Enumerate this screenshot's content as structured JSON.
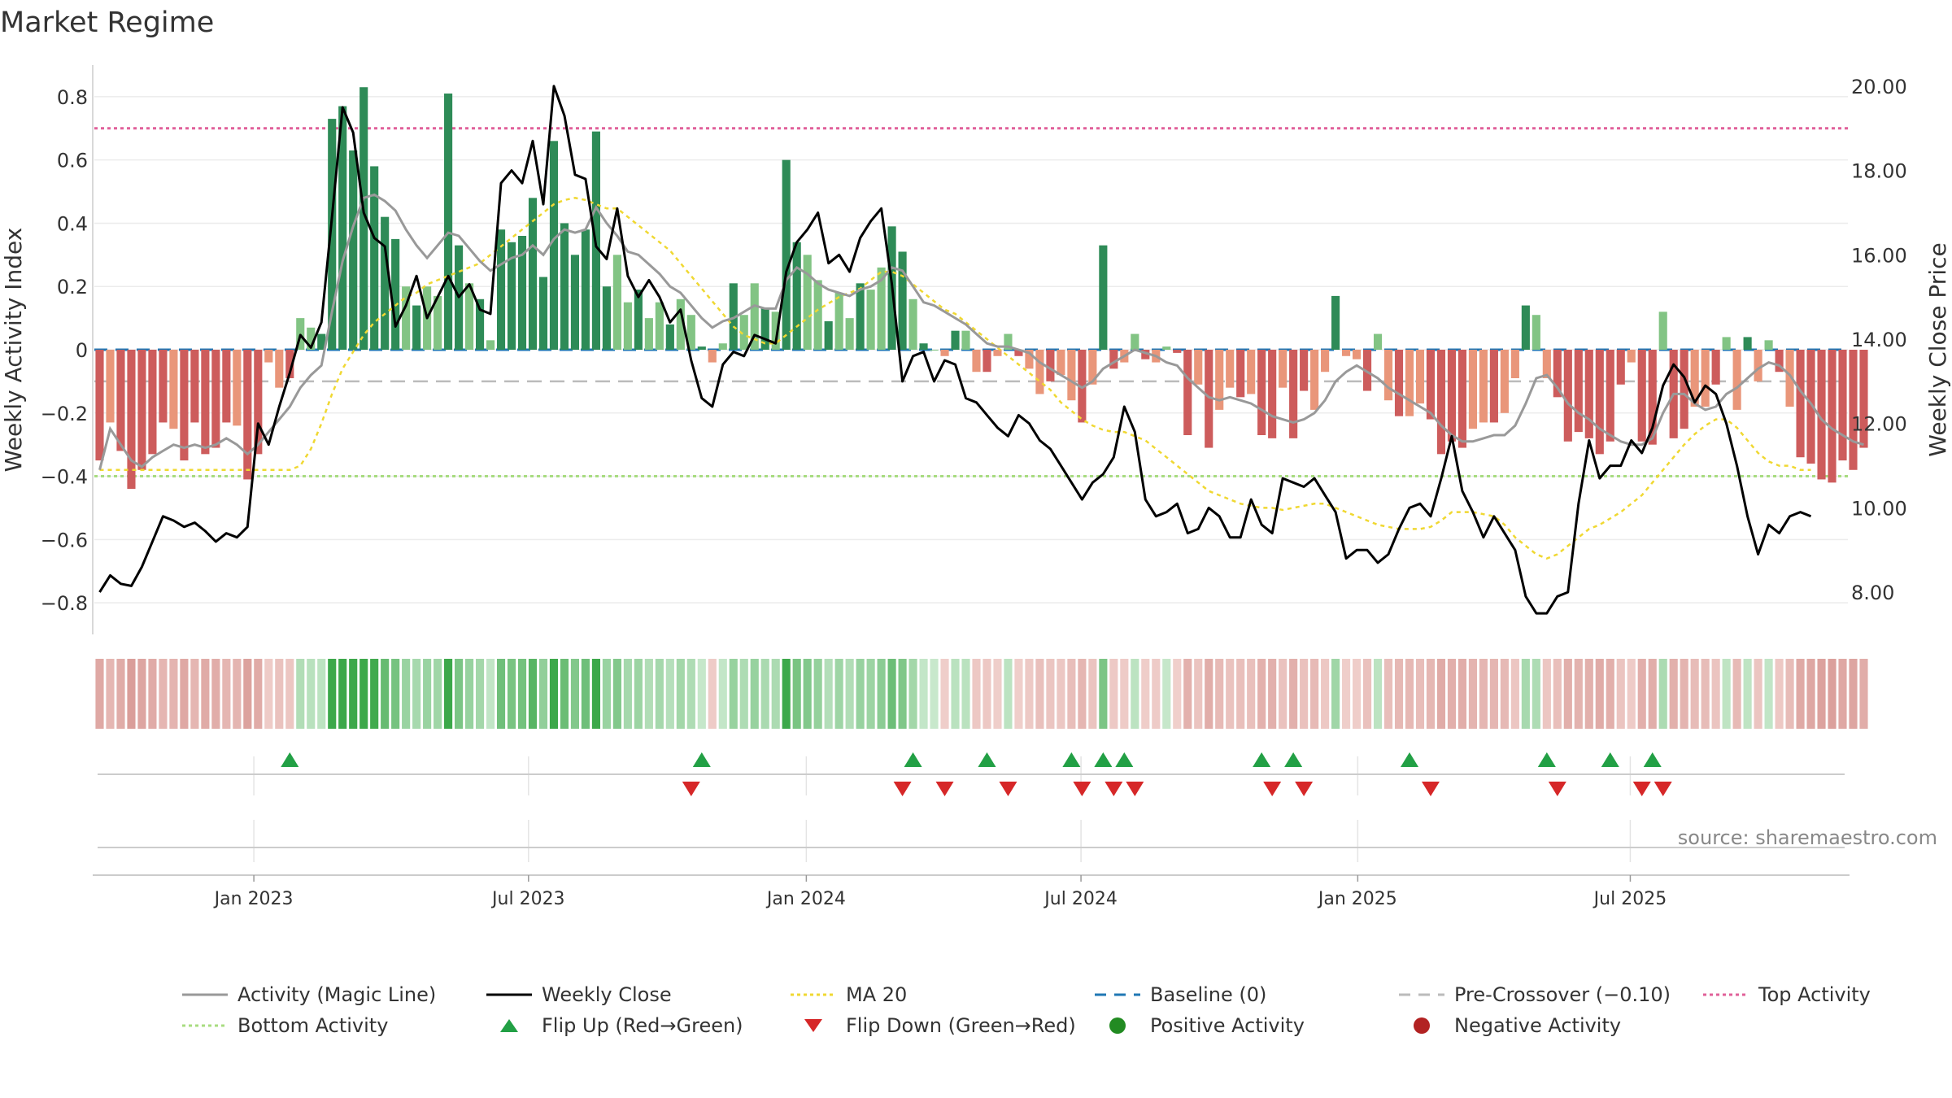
{
  "title": "Market Regime",
  "source": "source: sharemaestro.com",
  "colors": {
    "pos_dark": "#2e8b57",
    "pos_light": "#82c484",
    "neg_dark": "#cd5c5c",
    "neg_light": "#e9967a",
    "magic": "#999999",
    "close": "#000000",
    "ma20": "#f0d832",
    "baseline": "#1f77b4",
    "precross": "#bbbbbb",
    "top": "#e0609a",
    "bottom": "#a8dc80",
    "flip_up": "#22a045",
    "flip_down": "#d62728",
    "pos_dot": "#228b22",
    "neg_dot": "#b22222"
  },
  "chart_data": {
    "type": "bar",
    "ylabel": "Weekly Activity Index",
    "y2label": "Weekly Close Price",
    "ylim": [
      -0.9,
      0.9
    ],
    "y2lim": [
      7.0,
      20.5
    ],
    "yticks": [
      "0.8",
      "0.6",
      "0.4",
      "0.2",
      "0",
      "−0.2",
      "−0.4",
      "−0.6",
      "−0.8"
    ],
    "ytick_values": [
      0.8,
      0.6,
      0.4,
      0.2,
      0,
      -0.2,
      -0.4,
      -0.6,
      -0.8
    ],
    "y2ticks": [
      "20.00",
      "18.00",
      "16.00",
      "14.00",
      "12.00",
      "10.00",
      "8.00"
    ],
    "y2tick_values": [
      20,
      18,
      16,
      14,
      12,
      10,
      8
    ],
    "xticks": [
      "Jan 2023",
      "Jul 2023",
      "Jan 2024",
      "Jul 2024",
      "Jan 2025",
      "Jul 2025"
    ],
    "xtick_weeks": [
      14.6,
      40.6,
      66.9,
      92.9,
      119.1,
      144.9
    ],
    "weeks": 166,
    "top_activity": 0.7,
    "bottom_activity": -0.4,
    "pre_crossover": -0.1,
    "baseline": 0,
    "activity": [
      -0.35,
      -0.23,
      -0.32,
      -0.44,
      -0.38,
      -0.33,
      -0.23,
      -0.25,
      -0.35,
      -0.23,
      -0.33,
      -0.31,
      -0.23,
      -0.24,
      -0.41,
      -0.33,
      -0.04,
      -0.12,
      -0.09,
      0.1,
      0.07,
      0.05,
      0.73,
      0.77,
      0.63,
      0.83,
      0.58,
      0.42,
      0.35,
      0.2,
      0.14,
      0.2,
      0.17,
      0.81,
      0.33,
      0.21,
      0.16,
      0.03,
      0.38,
      0.34,
      0.36,
      0.48,
      0.23,
      0.66,
      0.4,
      0.3,
      0.38,
      0.69,
      0.2,
      0.3,
      0.15,
      0.19,
      0.1,
      0.15,
      0.08,
      0.16,
      0.11,
      0.01,
      -0.04,
      0.02,
      0.21,
      0.11,
      0.21,
      0.13,
      0.12,
      0.6,
      0.34,
      0.3,
      0.22,
      0.09,
      0.18,
      0.1,
      0.21,
      0.19,
      0.26,
      0.39,
      0.31,
      0.16,
      0.02,
      0.0,
      -0.02,
      0.06,
      0.06,
      -0.07,
      -0.07,
      -0.02,
      0.05,
      -0.02,
      -0.06,
      -0.14,
      -0.1,
      -0.08,
      -0.16,
      -0.23,
      -0.11,
      0.33,
      -0.06,
      -0.04,
      0.05,
      -0.03,
      -0.04,
      0.01,
      -0.01,
      -0.27,
      -0.11,
      -0.31,
      -0.19,
      -0.12,
      -0.15,
      -0.14,
      -0.27,
      -0.28,
      -0.12,
      -0.28,
      -0.13,
      -0.19,
      -0.07,
      0.17,
      -0.02,
      -0.03,
      -0.13,
      0.05,
      -0.16,
      -0.21,
      -0.21,
      -0.17,
      -0.22,
      -0.33,
      -0.29,
      -0.31,
      -0.25,
      -0.23,
      -0.23,
      -0.2,
      -0.09,
      0.14,
      0.11,
      -0.09,
      -0.15,
      -0.29,
      -0.26,
      -0.28,
      -0.33,
      -0.29,
      -0.11,
      -0.04,
      -0.29,
      -0.3,
      0.12,
      -0.28,
      -0.25,
      -0.18,
      -0.18,
      -0.11,
      0.04,
      -0.19,
      0.04,
      -0.1,
      0.03,
      -0.07,
      -0.18,
      -0.34,
      -0.36,
      -0.41,
      -0.42,
      -0.35,
      -0.38,
      -0.31
    ],
    "magic_line": [
      -0.38,
      -0.25,
      -0.3,
      -0.35,
      -0.37,
      -0.34,
      -0.32,
      -0.3,
      -0.31,
      -0.3,
      -0.31,
      -0.3,
      -0.28,
      -0.3,
      -0.33,
      -0.3,
      -0.26,
      -0.22,
      -0.18,
      -0.12,
      -0.08,
      -0.05,
      0.12,
      0.28,
      0.39,
      0.48,
      0.49,
      0.47,
      0.44,
      0.38,
      0.33,
      0.29,
      0.33,
      0.37,
      0.36,
      0.32,
      0.28,
      0.25,
      0.27,
      0.29,
      0.3,
      0.33,
      0.3,
      0.35,
      0.38,
      0.37,
      0.38,
      0.45,
      0.4,
      0.36,
      0.31,
      0.3,
      0.27,
      0.24,
      0.2,
      0.18,
      0.14,
      0.1,
      0.07,
      0.09,
      0.1,
      0.12,
      0.14,
      0.13,
      0.13,
      0.22,
      0.26,
      0.24,
      0.21,
      0.19,
      0.18,
      0.17,
      0.19,
      0.2,
      0.22,
      0.26,
      0.25,
      0.2,
      0.15,
      0.14,
      0.12,
      0.1,
      0.08,
      0.05,
      0.02,
      0.01,
      0.01,
      0.0,
      -0.01,
      -0.04,
      -0.06,
      -0.08,
      -0.1,
      -0.12,
      -0.1,
      -0.06,
      -0.04,
      -0.02,
      0.0,
      -0.01,
      -0.02,
      -0.04,
      -0.05,
      -0.09,
      -0.12,
      -0.15,
      -0.16,
      -0.15,
      -0.16,
      -0.17,
      -0.19,
      -0.21,
      -0.22,
      -0.23,
      -0.22,
      -0.2,
      -0.16,
      -0.1,
      -0.07,
      -0.05,
      -0.07,
      -0.09,
      -0.12,
      -0.14,
      -0.16,
      -0.18,
      -0.2,
      -0.24,
      -0.27,
      -0.29,
      -0.29,
      -0.28,
      -0.27,
      -0.27,
      -0.24,
      -0.17,
      -0.09,
      -0.08,
      -0.12,
      -0.17,
      -0.2,
      -0.22,
      -0.25,
      -0.27,
      -0.29,
      -0.3,
      -0.3,
      -0.28,
      -0.2,
      -0.14,
      -0.14,
      -0.17,
      -0.19,
      -0.18,
      -0.14,
      -0.12,
      -0.09,
      -0.06,
      -0.04,
      -0.05,
      -0.08,
      -0.13,
      -0.17,
      -0.22,
      -0.25,
      -0.27,
      -0.29,
      -0.3
    ],
    "weekly_close": [
      8.0,
      8.4,
      8.2,
      8.15,
      8.6,
      9.2,
      9.8,
      9.7,
      9.55,
      9.65,
      9.45,
      9.2,
      9.4,
      9.3,
      9.55,
      12.0,
      11.5,
      12.4,
      13.2,
      14.1,
      13.8,
      14.4,
      16.9,
      19.5,
      18.9,
      17.0,
      16.4,
      16.2,
      14.3,
      14.8,
      15.5,
      14.5,
      15.0,
      15.5,
      15.0,
      15.3,
      14.7,
      14.6,
      17.7,
      18.0,
      17.7,
      18.7,
      17.2,
      20.0,
      19.3,
      17.9,
      17.8,
      16.2,
      15.9,
      17.1,
      15.5,
      15.0,
      15.4,
      15.0,
      14.4,
      14.7,
      13.5,
      12.6,
      12.4,
      13.4,
      13.7,
      13.6,
      14.1,
      14.0,
      13.9,
      15.6,
      16.3,
      16.6,
      17.0,
      15.8,
      16.0,
      15.6,
      16.4,
      16.8,
      17.1,
      15.3,
      13.0,
      13.6,
      13.7,
      13.0,
      13.5,
      13.4,
      12.6,
      12.5,
      12.2,
      11.9,
      11.7,
      12.2,
      12.0,
      11.6,
      11.4,
      11.0,
      10.6,
      10.2,
      10.6,
      10.8,
      11.2,
      12.4,
      11.8,
      10.2,
      9.8,
      9.9,
      10.1,
      9.4,
      9.5,
      10.0,
      9.8,
      9.3,
      9.3,
      10.2,
      9.6,
      9.4,
      10.7,
      10.6,
      10.5,
      10.7,
      10.3,
      9.9,
      8.8,
      9.0,
      9.0,
      8.7,
      8.9,
      9.5,
      10.0,
      10.1,
      9.8,
      10.7,
      11.7,
      10.4,
      9.9,
      9.3,
      9.8,
      9.4,
      9.0,
      7.9,
      7.5,
      7.5,
      7.9,
      8.0,
      10.1,
      11.6,
      10.7,
      11.0,
      11.0,
      11.6,
      11.3,
      11.9,
      12.9,
      13.4,
      13.1,
      12.5,
      12.9,
      12.7,
      12.0,
      11.0,
      9.8,
      8.9,
      9.6,
      9.4,
      9.8,
      9.9,
      9.8
    ],
    "ma20": [
      10.9,
      10.9,
      10.9,
      10.9,
      10.9,
      10.9,
      10.9,
      10.9,
      10.9,
      10.9,
      10.9,
      10.9,
      10.9,
      10.9,
      10.9,
      10.9,
      10.9,
      10.9,
      10.9,
      11.0,
      11.4,
      12.0,
      12.7,
      13.3,
      13.7,
      14.1,
      14.4,
      14.6,
      14.8,
      15.0,
      15.1,
      15.3,
      15.4,
      15.5,
      15.6,
      15.7,
      15.8,
      16.0,
      16.2,
      16.4,
      16.6,
      16.8,
      17.0,
      17.2,
      17.3,
      17.35,
      17.3,
      17.2,
      17.1,
      17.1,
      16.9,
      16.7,
      16.5,
      16.3,
      16.1,
      15.8,
      15.5,
      15.2,
      14.9,
      14.6,
      14.3,
      14.1,
      14.0,
      13.9,
      13.9,
      14.1,
      14.3,
      14.5,
      14.7,
      14.85,
      15.0,
      15.1,
      15.2,
      15.4,
      15.6,
      15.6,
      15.5,
      15.3,
      15.1,
      14.9,
      14.7,
      14.6,
      14.4,
      14.2,
      14.0,
      13.8,
      13.6,
      13.4,
      13.2,
      13.0,
      12.8,
      12.5,
      12.3,
      12.1,
      11.95,
      11.85,
      11.8,
      11.8,
      11.7,
      11.6,
      11.4,
      11.2,
      11.0,
      10.8,
      10.6,
      10.4,
      10.3,
      10.2,
      10.1,
      10.05,
      10.0,
      10.0,
      9.95,
      10.0,
      10.05,
      10.1,
      10.1,
      10.0,
      9.9,
      9.8,
      9.7,
      9.6,
      9.55,
      9.5,
      9.5,
      9.5,
      9.55,
      9.7,
      9.9,
      9.9,
      9.9,
      9.85,
      9.8,
      9.6,
      9.3,
      9.1,
      8.9,
      8.8,
      8.9,
      9.1,
      9.3,
      9.5,
      9.6,
      9.75,
      9.9,
      10.1,
      10.3,
      10.6,
      10.9,
      11.2,
      11.5,
      11.75,
      11.95,
      12.1,
      12.1,
      11.9,
      11.6,
      11.3,
      11.1,
      11.0,
      11.0,
      10.9,
      10.9
    ],
    "flip_up_weeks": [
      18,
      57,
      77,
      84,
      92,
      95,
      97,
      110,
      113,
      124,
      137,
      143,
      147
    ],
    "flip_down_weeks": [
      56,
      76,
      80,
      86,
      93,
      96,
      98,
      111,
      114,
      126,
      138,
      146,
      148
    ]
  },
  "legend": [
    {
      "label": "Activity (Magic Line)",
      "style": "solid",
      "color": "#999999"
    },
    {
      "label": "Weekly Close",
      "style": "solid",
      "color": "#000000"
    },
    {
      "label": "MA 20",
      "style": "dotted",
      "color": "#f0d832"
    },
    {
      "label": "Baseline (0)",
      "style": "dashed",
      "color": "#1f77b4"
    },
    {
      "label": "Pre-Crossover (−0.10)",
      "style": "dashed",
      "color": "#bbbbbb"
    },
    {
      "label": "Top Activity",
      "style": "dotted",
      "color": "#e0609a"
    },
    {
      "label": "Bottom Activity",
      "style": "dotted",
      "color": "#a8dc80"
    },
    {
      "label": "Flip Up (Red→Green)",
      "style": "triangle-up",
      "color": "#22a045"
    },
    {
      "label": "Flip Down (Green→Red)",
      "style": "triangle-down",
      "color": "#d62728"
    },
    {
      "label": "Positive Activity",
      "style": "dot",
      "color": "#228b22"
    },
    {
      "label": "Negative Activity",
      "style": "dot",
      "color": "#b22222"
    }
  ]
}
